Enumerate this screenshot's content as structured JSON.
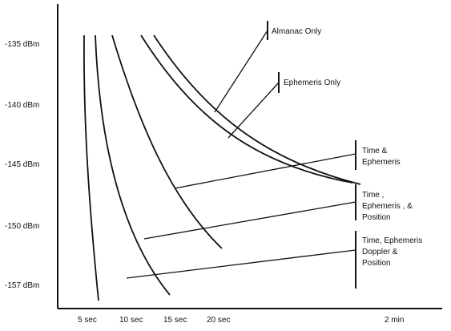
{
  "chart_data": {
    "type": "line",
    "title": "",
    "xlabel": "",
    "ylabel": "",
    "x_ticks": [
      "5 sec",
      "10 sec",
      "15 sec",
      "20 sec",
      "2 min"
    ],
    "y_ticks": [
      "-135 dBm",
      "-140 dBm",
      "-145 dBm",
      "-150 dBm",
      "-157 dBm"
    ],
    "grid": false,
    "series": [
      {
        "id": "time-doppler-position",
        "points": [
          [
            "5 sec",
            "-135 dBm"
          ],
          [
            "5 sec",
            "-140 dBm"
          ],
          [
            "5 sec",
            "-145 dBm"
          ],
          [
            "5 sec",
            "-150 dBm"
          ],
          [
            "5 sec",
            "-157 dBm"
          ]
        ]
      },
      {
        "id": "time-ephemeris-position",
        "points": [
          [
            "5 sec",
            "-135 dBm"
          ],
          [
            "10 sec",
            "-145 dBm"
          ],
          [
            "15 sec",
            "-157 dBm"
          ]
        ]
      },
      {
        "id": "time-ephemeris",
        "points": [
          [
            "10 sec",
            "-135 dBm"
          ],
          [
            "15 sec",
            "-145 dBm"
          ],
          [
            "20 sec",
            "-150 dBm"
          ]
        ]
      },
      {
        "id": "ephemeris-only",
        "points": [
          [
            "15 sec",
            "-135 dBm"
          ],
          [
            "20 sec",
            "-140 dBm"
          ],
          [
            "2 min",
            "-145 dBm"
          ]
        ]
      },
      {
        "id": "almanac-only",
        "points": [
          [
            "15 sec",
            "-135 dBm"
          ],
          [
            "20 sec",
            "-140 dBm"
          ],
          [
            "2 min",
            "-145 dBm"
          ]
        ]
      }
    ],
    "annotations": [
      {
        "id": "almanac-only",
        "lines": [
          "Almanac Only"
        ]
      },
      {
        "id": "ephemeris-only",
        "lines": [
          "Ephemeris Only"
        ]
      },
      {
        "id": "time-ephemeris",
        "lines": [
          "Time &",
          "Ephemeris"
        ]
      },
      {
        "id": "time-ephemeris-position",
        "lines": [
          "Time ,",
          "Ephemeris , &",
          "Position"
        ]
      },
      {
        "id": "time-doppler-position",
        "lines": [
          "Time, Ephemeris",
          "Doppler &",
          "Position"
        ]
      }
    ]
  }
}
